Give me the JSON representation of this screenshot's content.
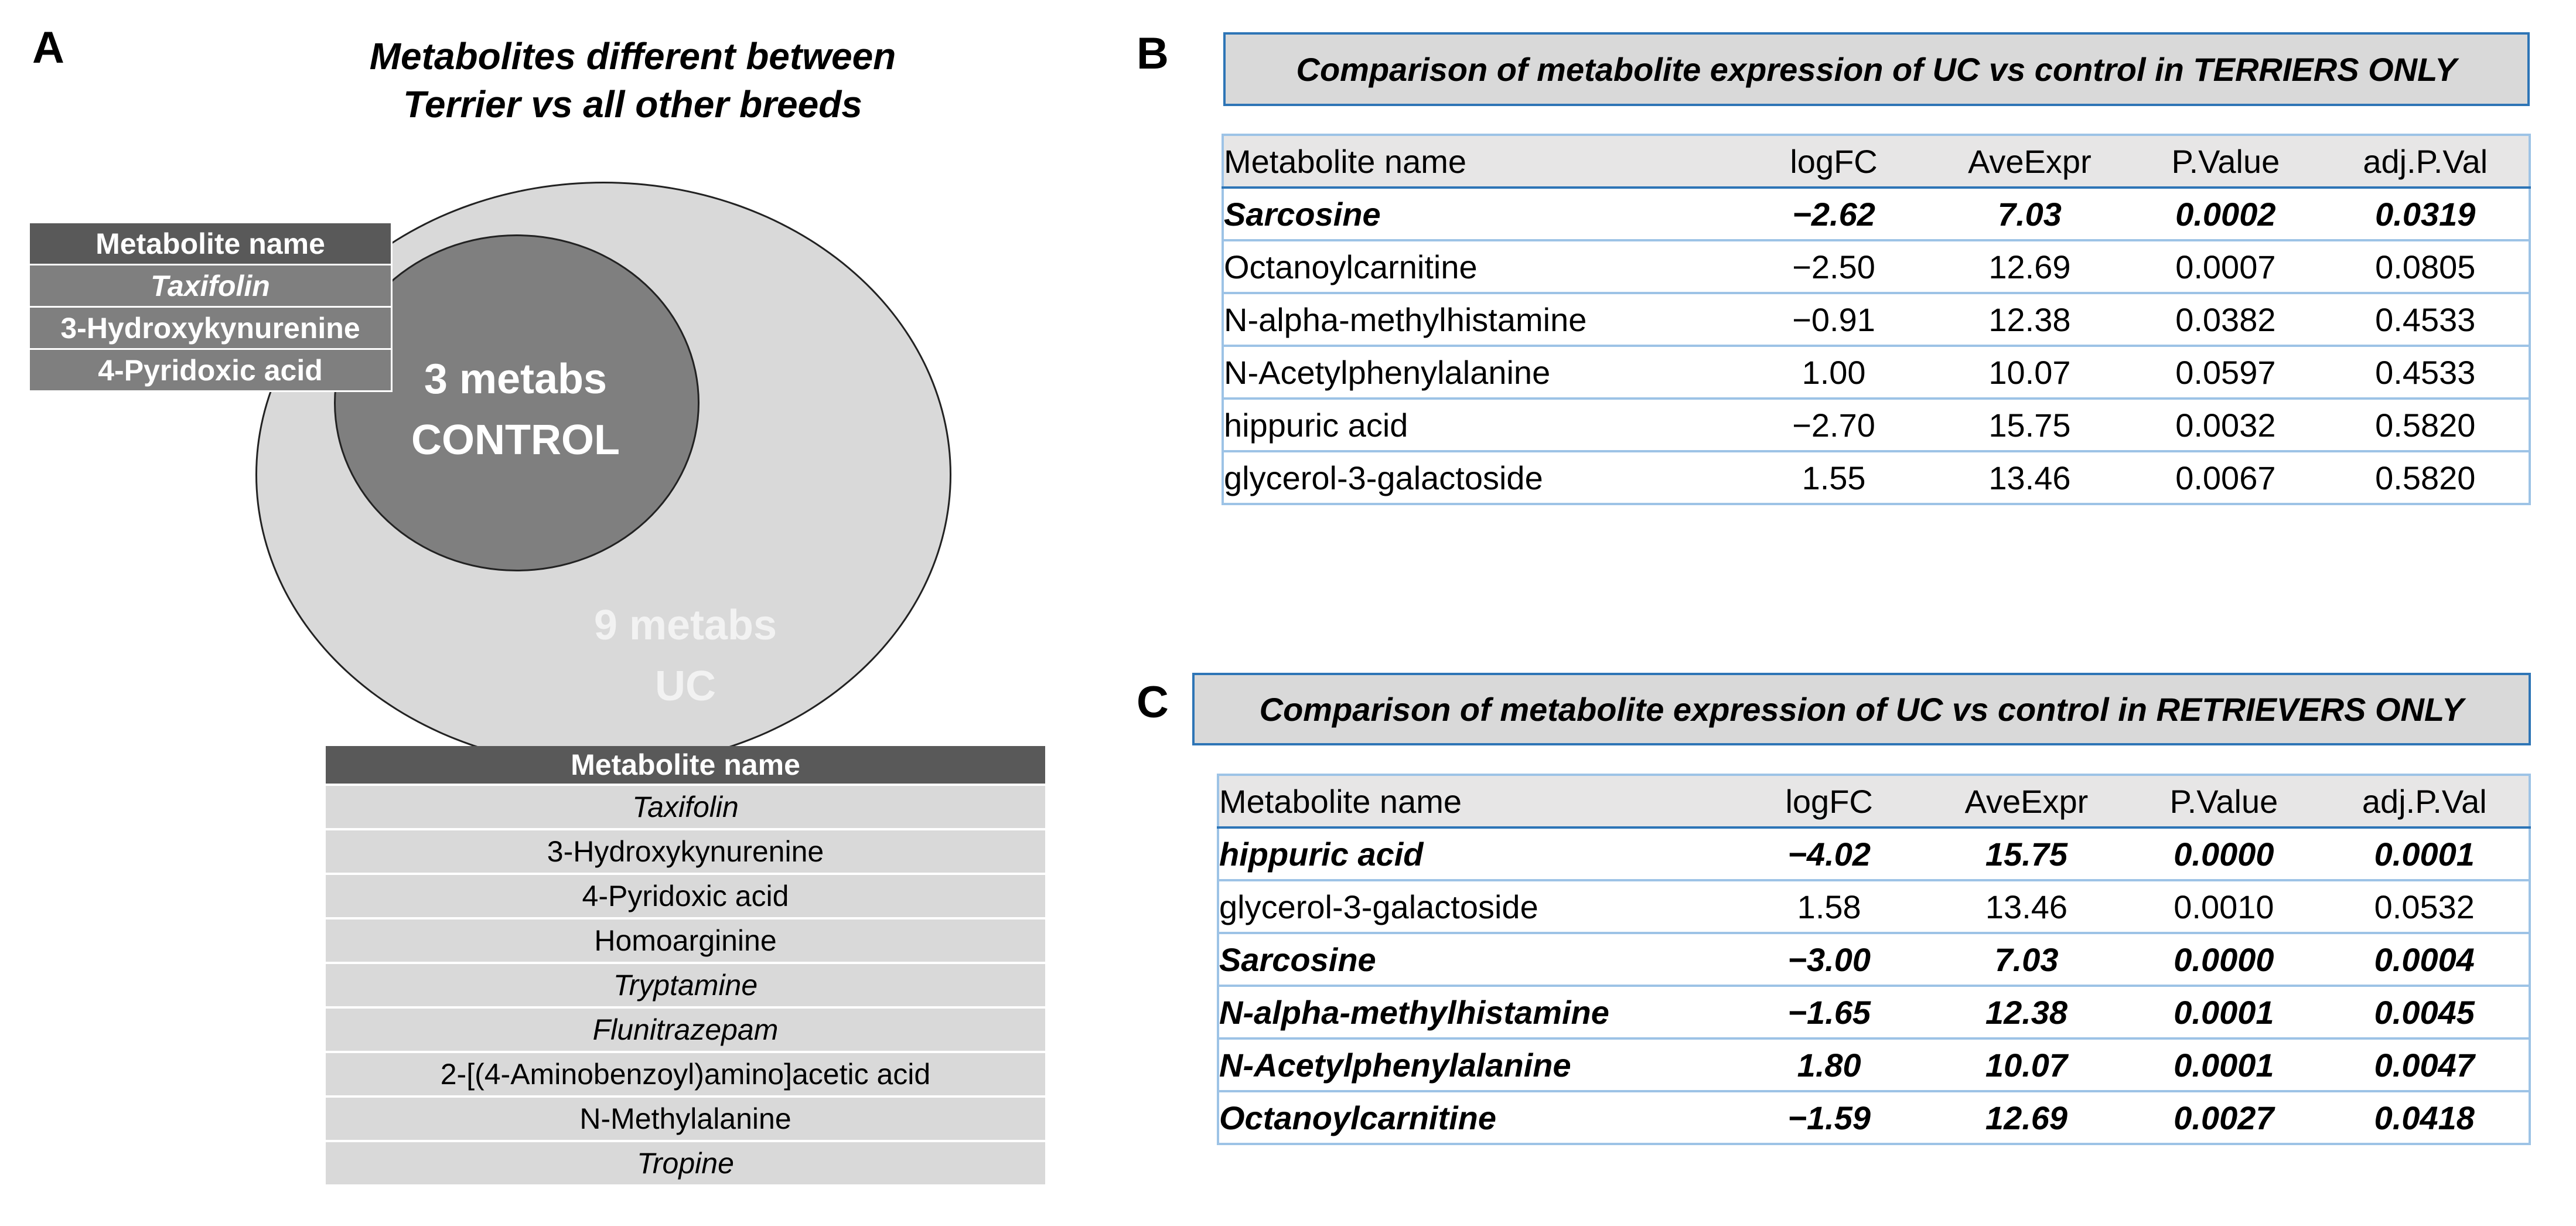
{
  "panel_a": {
    "letter": "A",
    "title_line1": "Metabolites different between",
    "title_line2": "Terrier vs all other breeds",
    "control_label_line1": "3 metabs",
    "control_label_line2": "CONTROL",
    "uc_label_line1": "9 metabs",
    "uc_label_line2": "UC",
    "control_table": {
      "header": "Metabolite name",
      "rows": [
        "Taxifolin",
        "3-Hydroxykynurenine",
        "4-Pyridoxic acid"
      ]
    },
    "uc_table": {
      "header": "Metabolite name",
      "rows": [
        "Taxifolin",
        "3-Hydroxykynurenine",
        "4-Pyridoxic acid",
        "Homoarginine",
        "Tryptamine",
        "Flunitrazepam",
        "2-[(4-Aminobenzoyl)amino]acetic acid",
        "N-Methylalanine",
        "Tropine"
      ]
    }
  },
  "panel_b": {
    "letter": "B",
    "caption": "Comparison of metabolite expression of UC vs control in TERRIERS ONLY",
    "headers": [
      "Metabolite name",
      "logFC",
      "AveExpr",
      "P.Value",
      "adj.P.Val"
    ],
    "rows": [
      [
        "Sarcosine",
        "−2.62",
        "7.03",
        "0.0002",
        "0.0319"
      ],
      [
        "Octanoylcarnitine",
        "−2.50",
        "12.69",
        "0.0007",
        "0.0805"
      ],
      [
        "N-alpha-methylhistamine",
        "−0.91",
        "12.38",
        "0.0382",
        "0.4533"
      ],
      [
        "N-Acetylphenylalanine",
        "1.00",
        "10.07",
        "0.0597",
        "0.4533"
      ],
      [
        "hippuric acid",
        "−2.70",
        "15.75",
        "0.0032",
        "0.5820"
      ],
      [
        "glycerol-3-galactoside",
        "1.55",
        "13.46",
        "0.0067",
        "0.5820"
      ]
    ]
  },
  "panel_c": {
    "letter": "C",
    "caption": "Comparison of metabolite expression of UC vs control in RETRIEVERS ONLY",
    "headers": [
      "Metabolite name",
      "logFC",
      "AveExpr",
      "P.Value",
      "adj.P.Val"
    ],
    "rows": [
      [
        "hippuric acid",
        "−4.02",
        "15.75",
        "0.0000",
        "0.0001"
      ],
      [
        "glycerol-3-galactoside",
        "1.58",
        "13.46",
        "0.0010",
        "0.0532"
      ],
      [
        "Sarcosine",
        "−3.00",
        "7.03",
        "0.0000",
        "0.0004"
      ],
      [
        "N-alpha-methylhistamine",
        "−1.65",
        "12.38",
        "0.0001",
        "0.0045"
      ],
      [
        "N-Acetylphenylalanine",
        "1.80",
        "10.07",
        "0.0001",
        "0.0047"
      ],
      [
        "Octanoylcarnitine",
        "−1.59",
        "12.69",
        "0.0027",
        "0.0418"
      ]
    ]
  }
}
